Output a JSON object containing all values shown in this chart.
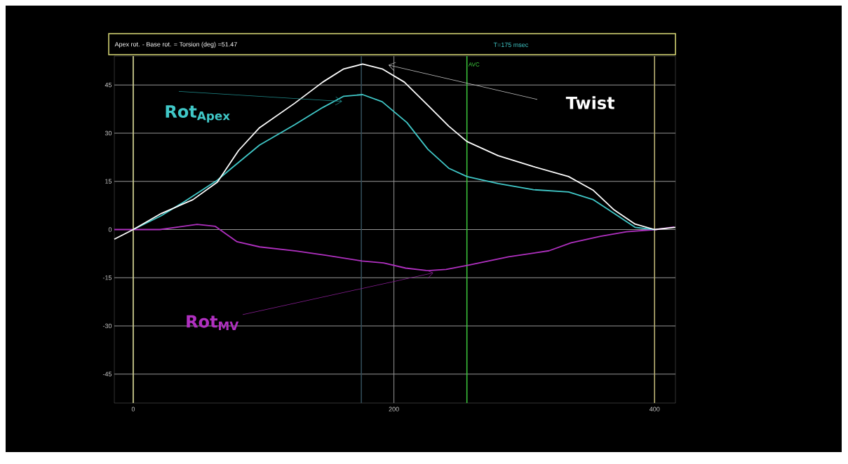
{
  "chart_data": {
    "type": "line",
    "title": "Apex rot. - Base rot. = Torsion (deg) =51.47",
    "subtitle": "T=175 msec",
    "xlim": [
      -14.5,
      416
    ],
    "ylim": [
      -54,
      54
    ],
    "xticks": [
      0,
      200,
      400
    ],
    "yticks": [
      -45,
      -30,
      -15,
      0,
      15,
      30,
      45
    ],
    "grid": true,
    "legend": "center",
    "ref_lines": [
      {
        "axis": "x",
        "value": 0,
        "color": "#d8d890"
      },
      {
        "axis": "x",
        "value": 400,
        "color": "#b8b070"
      },
      {
        "axis": "x",
        "value": 175,
        "color": "#34505c"
      },
      {
        "axis": "x",
        "value": 256,
        "label": "AVC",
        "color": "#3cc83c"
      }
    ],
    "series": [
      {
        "name": "Twist",
        "color": "#ffffff",
        "x": [
          -14.5,
          0,
          21.5,
          45.8,
          64.6,
          80.8,
          96.9,
          123.8,
          145.4,
          161.5,
          176,
          191,
          208,
          226,
          242,
          256,
          280,
          307,
          334,
          353,
          369,
          385,
          400,
          416
        ],
        "values": [
          -3,
          0,
          5,
          9.3,
          14.8,
          24.6,
          31.7,
          39.3,
          45.9,
          50,
          51.5,
          50,
          45.9,
          38.7,
          32.2,
          27.4,
          23,
          19.6,
          16.5,
          12.2,
          6.1,
          1.7,
          0,
          0.7
        ]
      },
      {
        "name": "Rot$_{Apex}$",
        "color": "#40c8c8",
        "x": [
          0,
          21.5,
          37.7,
          64.6,
          75.4,
          96.9,
          123.8,
          145.4,
          161.5,
          176,
          191,
          210,
          226,
          242,
          256,
          280,
          307,
          334,
          353,
          369,
          385,
          400
        ],
        "values": [
          0,
          4.3,
          8.3,
          15.4,
          19.1,
          26.3,
          32.6,
          38,
          41.5,
          42,
          39.8,
          33.3,
          25,
          19.1,
          16.5,
          14.3,
          12.4,
          11.7,
          9.3,
          5,
          0.7,
          0
        ]
      },
      {
        "name": "Rot$_{MV}$",
        "color": "#b030c0",
        "x": [
          -14.5,
          20.5,
          49,
          63,
          79.7,
          97,
          125,
          147.5,
          175.5,
          192,
          209,
          226,
          240,
          257,
          288,
          319,
          336,
          358.5,
          378.5,
          401,
          415
        ],
        "values": [
          0,
          0,
          1.6,
          1,
          -3.8,
          -5.4,
          -6.7,
          -8,
          -9.8,
          -10.4,
          -12,
          -12.8,
          -12.4,
          -11.1,
          -8.5,
          -6.6,
          -4.1,
          -2.1,
          -0.7,
          0,
          0.8
        ]
      }
    ]
  }
}
